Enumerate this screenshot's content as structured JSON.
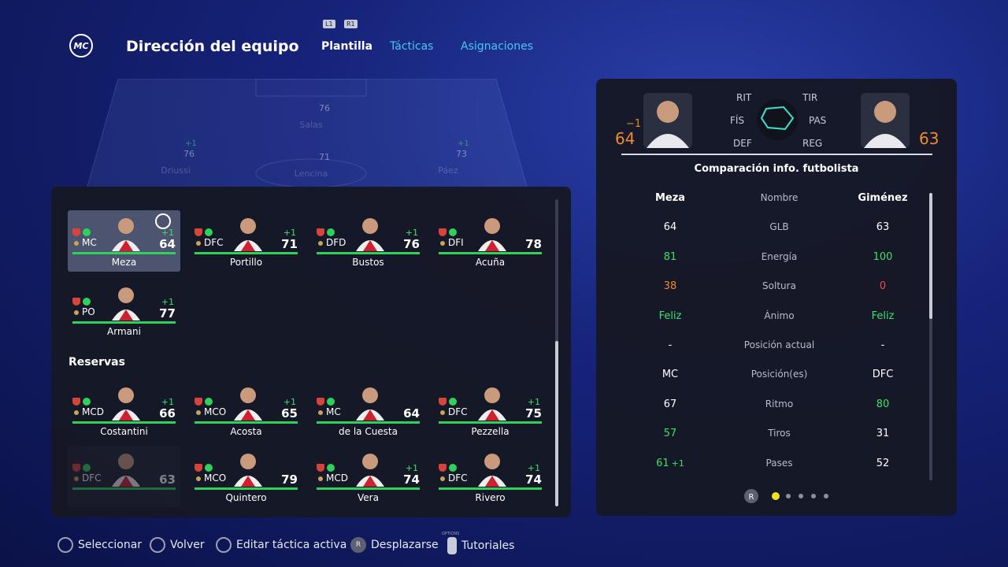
{
  "header": {
    "logo": "MC",
    "title": "Dirección del equipo",
    "tab_hints": [
      "L1",
      "R1"
    ],
    "tabs": [
      "Plantilla",
      "Tácticas",
      "Asignaciones"
    ]
  },
  "pitch_players": [
    {
      "name": "Salas",
      "rating": 76
    },
    {
      "name": "Driussi",
      "rating": 76,
      "boost": "+1"
    },
    {
      "name": "Lencina",
      "rating": 71
    },
    {
      "name": "Páez",
      "rating": 73,
      "boost": "+1"
    }
  ],
  "starters": [
    {
      "position": "MC",
      "boost": "+1",
      "rating": 64,
      "name": "Meza",
      "selected": true
    },
    {
      "position": "DFC",
      "boost": "+1",
      "rating": 71,
      "name": "Portillo"
    },
    {
      "position": "DFD",
      "boost": "+1",
      "rating": 76,
      "name": "Bustos"
    },
    {
      "position": "DFI",
      "rating": 78,
      "name": "Acuña"
    },
    {
      "position": "PO",
      "boost": "+1",
      "rating": 77,
      "name": "Armani"
    }
  ],
  "reserves_title": "Reservas",
  "reserves": [
    {
      "position": "MCD",
      "boost": "+1",
      "rating": 66,
      "name": "Costantini"
    },
    {
      "position": "MCO",
      "boost": "+1",
      "rating": 65,
      "name": "Acosta"
    },
    {
      "position": "MC",
      "rating": 64,
      "name": "de la Cuesta"
    },
    {
      "position": "DFC",
      "boost": "+1",
      "rating": 75,
      "name": "Pezzella"
    },
    {
      "position": "DFC",
      "rating": 63,
      "faded": true
    },
    {
      "position": "MCO",
      "rating": 79,
      "name": "Quintero"
    },
    {
      "position": "MCD",
      "boost": "+1",
      "rating": 74,
      "name": "Vera"
    },
    {
      "position": "DFC",
      "boost": "+1",
      "rating": 74,
      "name": "Rivero"
    }
  ],
  "comparison": {
    "left_delta": "−1",
    "left_rating": 64,
    "right_rating": 63,
    "radar_labels": [
      "RIT",
      "TIR",
      "FÍS",
      "PAS",
      "DEF",
      "REG"
    ],
    "title": "Comparación info. futbolista",
    "rows": [
      {
        "left": "Meza",
        "label": "Nombre",
        "right": "Giménez"
      },
      {
        "left": 64,
        "label": "GLB",
        "right": 63
      },
      {
        "left": 81,
        "label": "Energía",
        "right": 100,
        "left_color": "#3ee06a",
        "right_color": "#3ee06a"
      },
      {
        "left": 38,
        "label": "Soltura",
        "right": 0,
        "left_color": "#f08a2a",
        "right_color": "#f04a4a"
      },
      {
        "left": "Feliz",
        "label": "Ánimo",
        "right": "Feliz",
        "left_color": "#3ee06a",
        "right_color": "#3ee06a"
      },
      {
        "left": "-",
        "label": "Posición actual",
        "right": "-"
      },
      {
        "left": "MC",
        "label": "Posición(es)",
        "right": "DFC"
      },
      {
        "left": 67,
        "label": "Ritmo",
        "right": 80,
        "right_color": "#3ee06a"
      },
      {
        "left": 57,
        "label": "Tiros",
        "right": 31,
        "left_color": "#3ee06a"
      },
      {
        "left": 61,
        "left_extra": "+1",
        "label": "Pases",
        "right": 52,
        "left_color": "#3ee06a"
      }
    ],
    "pager_hint": "R"
  },
  "footer": {
    "items": [
      "Seleccionar",
      "Volver",
      "Editar táctica activa",
      "Desplazarse",
      "Tutoriales"
    ],
    "scroll_hint": "R",
    "options_hint": "OPTIONS"
  }
}
